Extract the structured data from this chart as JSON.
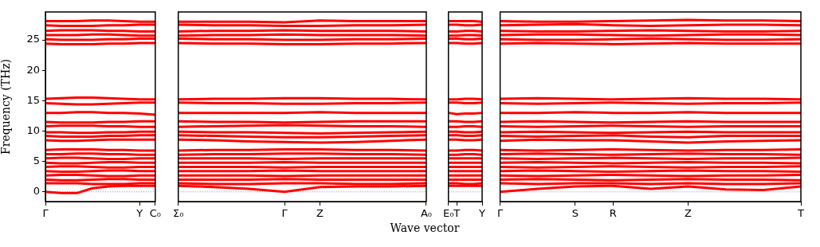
{
  "chart_data": [
    {
      "type": "line",
      "ylabel": "Frequency (THz)",
      "categories": [
        "Γ",
        null,
        null,
        null,
        null,
        null,
        "Y",
        "C₀"
      ],
      "ylim": [
        -1.6,
        29.6
      ],
      "yticks": [
        0,
        5,
        10,
        15,
        20,
        25
      ],
      "grid": false,
      "legend": false,
      "marker": "none",
      "line_style": "solid",
      "ref_lines": [
        {
          "axis": "y",
          "value": 0,
          "color": "#8080ff",
          "line_style": "dotted"
        }
      ],
      "series": [
        {
          "color": "#ff0000",
          "values": [
            28.1,
            28.1,
            28.1,
            28.2,
            28.2,
            28.1,
            28.0,
            28.0
          ]
        },
        {
          "color": "#ff0000",
          "values": [
            27.4,
            27.3,
            27.3,
            27.3,
            27.4,
            27.4,
            27.5,
            27.5
          ]
        },
        {
          "color": "#ff0000",
          "values": [
            26.5,
            26.6,
            26.6,
            26.6,
            26.5,
            26.5,
            26.4,
            26.4
          ]
        },
        {
          "color": "#ff0000",
          "values": [
            25.8,
            25.8,
            25.8,
            25.9,
            25.9,
            25.8,
            25.7,
            25.7
          ]
        },
        {
          "color": "#ff0000",
          "values": [
            25.1,
            25.0,
            25.0,
            25.0,
            25.1,
            25.1,
            25.2,
            25.2
          ]
        },
        {
          "color": "#ff0000",
          "values": [
            24.4,
            24.3,
            24.3,
            24.3,
            24.4,
            24.4,
            24.5,
            24.5
          ]
        },
        {
          "color": "#ff0000",
          "values": [
            15.3,
            15.4,
            15.5,
            15.5,
            15.4,
            15.3,
            15.2,
            15.2
          ]
        },
        {
          "color": "#ff0000",
          "values": [
            14.6,
            14.5,
            14.4,
            14.4,
            14.5,
            14.6,
            14.7,
            14.7
          ]
        },
        {
          "color": "#ff0000",
          "values": [
            13.0,
            13.0,
            13.1,
            13.1,
            13.0,
            13.0,
            12.9,
            12.7
          ]
        },
        {
          "color": "#ff0000",
          "values": [
            11.5,
            11.4,
            11.4,
            11.4,
            11.5,
            11.5,
            11.6,
            11.6
          ]
        },
        {
          "color": "#ff0000",
          "values": [
            10.8,
            10.9,
            10.9,
            10.9,
            10.8,
            10.8,
            10.7,
            10.7
          ]
        },
        {
          "color": "#ff0000",
          "values": [
            9.8,
            9.8,
            9.7,
            9.7,
            9.8,
            9.8,
            9.9,
            9.9
          ]
        },
        {
          "color": "#ff0000",
          "values": [
            9.2,
            9.1,
            9.1,
            9.1,
            9.2,
            9.2,
            9.3,
            9.3
          ]
        },
        {
          "color": "#ff0000",
          "values": [
            8.5,
            8.4,
            8.4,
            8.5,
            8.6,
            8.6,
            8.6,
            8.6
          ]
        },
        {
          "color": "#ff0000",
          "values": [
            6.9,
            7.0,
            7.0,
            7.0,
            6.9,
            6.9,
            6.8,
            6.8
          ]
        },
        {
          "color": "#ff0000",
          "values": [
            6.2,
            6.2,
            6.3,
            6.3,
            6.2,
            6.2,
            6.1,
            6.1
          ]
        },
        {
          "color": "#ff0000",
          "values": [
            5.5,
            5.6,
            5.6,
            5.5,
            5.4,
            5.4,
            5.5,
            5.5
          ]
        },
        {
          "color": "#ff0000",
          "values": [
            4.8,
            4.7,
            4.7,
            4.8,
            4.9,
            4.9,
            4.8,
            4.8
          ]
        },
        {
          "color": "#ff0000",
          "values": [
            4.1,
            4.2,
            4.2,
            4.1,
            4.0,
            4.0,
            4.1,
            4.1
          ]
        },
        {
          "color": "#ff0000",
          "values": [
            3.4,
            3.3,
            3.3,
            3.4,
            3.5,
            3.5,
            3.4,
            3.4
          ]
        },
        {
          "color": "#ff0000",
          "values": [
            2.7,
            2.8,
            2.8,
            2.7,
            2.6,
            2.6,
            2.7,
            2.7
          ]
        },
        {
          "color": "#ff0000",
          "values": [
            2.0,
            1.9,
            1.9,
            2.0,
            2.1,
            2.1,
            2.0,
            2.0
          ]
        },
        {
          "color": "#ff0000",
          "values": [
            1.4,
            1.4,
            1.4,
            1.3,
            1.3,
            1.3,
            1.4,
            1.4
          ]
        },
        {
          "color": "#ff0000",
          "values": [
            0,
            -0.2,
            -0.2,
            0.6,
            0.9,
            1.0,
            1.0,
            1.0
          ]
        }
      ]
    },
    {
      "type": "line",
      "xlabel": "Wave vector",
      "categories": [
        "Σ₀",
        null,
        null,
        "Γ",
        "Z",
        null,
        null,
        "A₀"
      ],
      "ylim": [
        -1.6,
        29.6
      ],
      "yticks": [
        0,
        5,
        10,
        15,
        20,
        25
      ],
      "tick_labels": "x",
      "grid": false,
      "legend": false,
      "marker": "none",
      "line_style": "solid",
      "ref_lines": [
        {
          "axis": "y",
          "value": 0,
          "color": "#8080ff",
          "line_style": "dotted"
        }
      ],
      "series": [
        {
          "color": "#ff0000",
          "values": [
            28.0,
            28.0,
            28.0,
            27.9,
            28.2,
            28.1,
            28.1,
            28.1
          ]
        },
        {
          "color": "#ff0000",
          "values": [
            27.5,
            27.4,
            27.4,
            27.3,
            27.3,
            27.4,
            27.4,
            27.5
          ]
        },
        {
          "color": "#ff0000",
          "values": [
            26.4,
            26.5,
            26.5,
            26.6,
            26.5,
            26.5,
            26.5,
            26.4
          ]
        },
        {
          "color": "#ff0000",
          "values": [
            25.7,
            25.8,
            25.8,
            25.9,
            25.8,
            25.8,
            25.8,
            25.7
          ]
        },
        {
          "color": "#ff0000",
          "values": [
            25.2,
            25.1,
            25.1,
            25.0,
            25.0,
            25.1,
            25.1,
            25.2
          ]
        },
        {
          "color": "#ff0000",
          "values": [
            24.5,
            24.4,
            24.4,
            24.3,
            24.3,
            24.4,
            24.4,
            24.5
          ]
        },
        {
          "color": "#ff0000",
          "values": [
            15.2,
            15.3,
            15.3,
            15.4,
            15.4,
            15.3,
            15.3,
            15.2
          ]
        },
        {
          "color": "#ff0000",
          "values": [
            14.7,
            14.6,
            14.6,
            14.5,
            14.5,
            14.6,
            14.6,
            14.7
          ]
        },
        {
          "color": "#ff0000",
          "values": [
            13.0,
            13.0,
            13.0,
            13.0,
            13.1,
            13.0,
            13.0,
            13.0
          ]
        },
        {
          "color": "#ff0000",
          "values": [
            11.6,
            11.5,
            11.5,
            11.4,
            11.5,
            11.6,
            11.6,
            11.6
          ]
        },
        {
          "color": "#ff0000",
          "values": [
            10.7,
            10.8,
            10.9,
            11.0,
            10.9,
            10.8,
            10.8,
            10.7
          ]
        },
        {
          "color": "#ff0000",
          "values": [
            9.9,
            9.8,
            9.8,
            9.7,
            9.6,
            9.7,
            9.8,
            9.9
          ]
        },
        {
          "color": "#ff0000",
          "values": [
            9.3,
            9.2,
            9.1,
            9.0,
            9.0,
            9.1,
            9.2,
            9.3
          ]
        },
        {
          "color": "#ff0000",
          "values": [
            8.6,
            8.5,
            8.3,
            8.2,
            8.1,
            8.2,
            8.4,
            8.6
          ]
        },
        {
          "color": "#ff0000",
          "values": [
            6.8,
            6.9,
            6.9,
            7.0,
            7.0,
            6.9,
            6.9,
            6.8
          ]
        },
        {
          "color": "#ff0000",
          "values": [
            6.1,
            6.2,
            6.2,
            6.3,
            6.3,
            6.2,
            6.2,
            6.1
          ]
        },
        {
          "color": "#ff0000",
          "values": [
            5.5,
            5.5,
            5.5,
            5.4,
            5.5,
            5.5,
            5.5,
            5.5
          ]
        },
        {
          "color": "#ff0000",
          "values": [
            4.8,
            4.8,
            4.8,
            4.9,
            4.8,
            4.8,
            4.8,
            4.8
          ]
        },
        {
          "color": "#ff0000",
          "values": [
            4.1,
            4.1,
            4.1,
            4.0,
            4.1,
            4.1,
            4.1,
            4.1
          ]
        },
        {
          "color": "#ff0000",
          "values": [
            3.4,
            3.4,
            3.4,
            3.5,
            3.4,
            3.4,
            3.4,
            3.4
          ]
        },
        {
          "color": "#ff0000",
          "values": [
            2.7,
            2.7,
            2.7,
            2.6,
            2.7,
            2.7,
            2.7,
            2.7
          ]
        },
        {
          "color": "#ff0000",
          "values": [
            2.0,
            2.0,
            2.0,
            2.1,
            2.0,
            2.0,
            2.0,
            2.0
          ]
        },
        {
          "color": "#ff0000",
          "values": [
            1.4,
            1.3,
            1.3,
            1.4,
            1.4,
            1.3,
            1.3,
            1.4
          ]
        },
        {
          "color": "#ff0000",
          "values": [
            1.0,
            0.8,
            0.5,
            0,
            0.8,
            0.9,
            0.9,
            1.0
          ]
        }
      ]
    },
    {
      "type": "line",
      "categories": [
        "E₀",
        "T",
        null,
        null,
        "Y"
      ],
      "ylim": [
        -1.6,
        29.6
      ],
      "yticks": [
        0,
        5,
        10,
        15,
        20,
        25
      ],
      "tick_labels": "x",
      "grid": false,
      "legend": false,
      "marker": "none",
      "line_style": "solid",
      "ref_lines": [
        {
          "axis": "y",
          "value": 0,
          "color": "#8080ff",
          "line_style": "dotted"
        }
      ],
      "series": [
        {
          "color": "#ff0000",
          "values": [
            28.1,
            28.1,
            28.1,
            28.1,
            28.0
          ]
        },
        {
          "color": "#ff0000",
          "values": [
            27.5,
            27.5,
            27.4,
            27.4,
            27.5
          ]
        },
        {
          "color": "#ff0000",
          "values": [
            26.4,
            26.4,
            26.5,
            26.5,
            26.4
          ]
        },
        {
          "color": "#ff0000",
          "values": [
            25.7,
            25.7,
            25.8,
            25.8,
            25.7
          ]
        },
        {
          "color": "#ff0000",
          "values": [
            25.2,
            25.2,
            25.1,
            25.1,
            25.2
          ]
        },
        {
          "color": "#ff0000",
          "values": [
            24.5,
            24.5,
            24.4,
            24.4,
            24.5
          ]
        },
        {
          "color": "#ff0000",
          "values": [
            15.2,
            15.2,
            15.3,
            15.3,
            15.2
          ]
        },
        {
          "color": "#ff0000",
          "values": [
            14.7,
            14.7,
            14.6,
            14.6,
            14.7
          ]
        },
        {
          "color": "#ff0000",
          "values": [
            13.0,
            12.8,
            12.9,
            12.9,
            13.0
          ]
        },
        {
          "color": "#ff0000",
          "values": [
            11.6,
            11.6,
            11.5,
            11.5,
            11.6
          ]
        },
        {
          "color": "#ff0000",
          "values": [
            10.7,
            10.7,
            10.8,
            10.8,
            10.7
          ]
        },
        {
          "color": "#ff0000",
          "values": [
            9.9,
            9.9,
            9.8,
            9.8,
            9.9
          ]
        },
        {
          "color": "#ff0000",
          "values": [
            9.3,
            9.3,
            9.2,
            9.2,
            9.3
          ]
        },
        {
          "color": "#ff0000",
          "values": [
            8.6,
            8.6,
            8.5,
            8.5,
            8.6
          ]
        },
        {
          "color": "#ff0000",
          "values": [
            6.8,
            6.8,
            6.9,
            6.9,
            6.8
          ]
        },
        {
          "color": "#ff0000",
          "values": [
            6.1,
            6.1,
            6.2,
            6.2,
            6.1
          ]
        },
        {
          "color": "#ff0000",
          "values": [
            5.5,
            5.5,
            5.5,
            5.5,
            5.5
          ]
        },
        {
          "color": "#ff0000",
          "values": [
            4.8,
            4.8,
            4.8,
            4.8,
            4.8
          ]
        },
        {
          "color": "#ff0000",
          "values": [
            4.1,
            4.1,
            4.1,
            4.1,
            4.1
          ]
        },
        {
          "color": "#ff0000",
          "values": [
            3.4,
            3.4,
            3.4,
            3.4,
            3.4
          ]
        },
        {
          "color": "#ff0000",
          "values": [
            2.7,
            2.7,
            2.7,
            2.7,
            2.7
          ]
        },
        {
          "color": "#ff0000",
          "values": [
            2.0,
            2.0,
            2.0,
            2.0,
            2.0
          ]
        },
        {
          "color": "#ff0000",
          "values": [
            1.4,
            1.4,
            1.3,
            1.3,
            1.4
          ]
        },
        {
          "color": "#ff0000",
          "values": [
            1.0,
            1.0,
            1.0,
            1.0,
            1.0
          ]
        }
      ]
    },
    {
      "type": "line",
      "categories": [
        "Γ",
        null,
        "S",
        "R",
        null,
        "Z",
        null,
        null,
        "T"
      ],
      "ylim": [
        -1.6,
        29.6
      ],
      "yticks": [
        0,
        5,
        10,
        15,
        20,
        25
      ],
      "tick_labels": "x",
      "grid": false,
      "legend": false,
      "marker": "none",
      "line_style": "solid",
      "ref_lines": [
        {
          "axis": "y",
          "value": 0,
          "color": "#8080ff",
          "line_style": "dotted"
        }
      ],
      "series": [
        {
          "color": "#ff0000",
          "values": [
            28.1,
            28.0,
            28.0,
            28.1,
            28.2,
            28.3,
            28.2,
            28.2,
            28.1
          ]
        },
        {
          "color": "#ff0000",
          "values": [
            27.4,
            27.5,
            27.6,
            27.4,
            27.3,
            27.4,
            27.5,
            27.5,
            27.4
          ]
        },
        {
          "color": "#ff0000",
          "values": [
            26.5,
            26.4,
            26.4,
            26.5,
            26.6,
            26.5,
            26.4,
            26.4,
            26.5
          ]
        },
        {
          "color": "#ff0000",
          "values": [
            25.8,
            25.9,
            25.9,
            25.8,
            25.7,
            25.8,
            25.9,
            25.9,
            25.8
          ]
        },
        {
          "color": "#ff0000",
          "values": [
            25.1,
            25.0,
            25.0,
            25.1,
            25.2,
            25.1,
            25.0,
            25.0,
            25.1
          ]
        },
        {
          "color": "#ff0000",
          "values": [
            24.4,
            24.5,
            24.4,
            24.3,
            24.4,
            24.5,
            24.4,
            24.4,
            24.4
          ]
        },
        {
          "color": "#ff0000",
          "values": [
            15.3,
            15.4,
            15.3,
            15.2,
            15.3,
            15.4,
            15.3,
            15.3,
            15.2
          ]
        },
        {
          "color": "#ff0000",
          "values": [
            14.6,
            14.5,
            14.6,
            14.7,
            14.6,
            14.5,
            14.6,
            14.6,
            14.7
          ]
        },
        {
          "color": "#ff0000",
          "values": [
            13.0,
            13.0,
            13.1,
            13.0,
            13.0,
            13.1,
            13.0,
            13.0,
            13.0
          ]
        },
        {
          "color": "#ff0000",
          "values": [
            11.5,
            11.6,
            11.5,
            11.4,
            11.5,
            11.6,
            11.5,
            11.5,
            11.5
          ]
        },
        {
          "color": "#ff0000",
          "values": [
            10.8,
            10.7,
            10.8,
            10.9,
            10.8,
            10.7,
            10.8,
            10.8,
            10.8
          ]
        },
        {
          "color": "#ff0000",
          "values": [
            9.8,
            9.9,
            9.8,
            9.7,
            9.8,
            9.9,
            9.8,
            9.8,
            9.8
          ]
        },
        {
          "color": "#ff0000",
          "values": [
            9.2,
            9.1,
            9.2,
            9.3,
            9.1,
            9.0,
            9.2,
            9.2,
            9.2
          ]
        },
        {
          "color": "#ff0000",
          "values": [
            8.4,
            8.6,
            8.5,
            8.5,
            8.3,
            8.1,
            8.3,
            8.4,
            8.5
          ]
        },
        {
          "color": "#ff0000",
          "values": [
            6.9,
            6.8,
            6.9,
            7.0,
            6.9,
            6.8,
            6.9,
            6.9,
            7.0
          ]
        },
        {
          "color": "#ff0000",
          "values": [
            6.2,
            6.3,
            6.2,
            6.1,
            6.2,
            6.3,
            6.2,
            6.2,
            6.1
          ]
        },
        {
          "color": "#ff0000",
          "values": [
            5.5,
            5.4,
            5.5,
            5.6,
            5.5,
            5.4,
            5.5,
            5.5,
            5.6
          ]
        },
        {
          "color": "#ff0000",
          "values": [
            4.8,
            4.9,
            4.8,
            4.7,
            4.8,
            4.9,
            4.8,
            4.8,
            4.7
          ]
        },
        {
          "color": "#ff0000",
          "values": [
            4.1,
            4.0,
            4.1,
            4.2,
            4.1,
            4.0,
            4.1,
            4.1,
            4.2
          ]
        },
        {
          "color": "#ff0000",
          "values": [
            3.4,
            3.5,
            3.4,
            3.3,
            3.4,
            3.5,
            3.4,
            3.4,
            3.3
          ]
        },
        {
          "color": "#ff0000",
          "values": [
            2.7,
            2.6,
            2.7,
            2.8,
            2.7,
            2.6,
            2.7,
            2.7,
            2.8
          ]
        },
        {
          "color": "#ff0000",
          "values": [
            2.0,
            2.1,
            2.0,
            1.9,
            2.0,
            2.1,
            2.0,
            2.0,
            1.9
          ]
        },
        {
          "color": "#ff0000",
          "values": [
            1.4,
            1.3,
            1.4,
            1.4,
            1.3,
            1.4,
            1.3,
            1.3,
            1.4
          ]
        },
        {
          "color": "#ff0000",
          "values": [
            0,
            0.5,
            0.9,
            1.0,
            0.5,
            0.9,
            0.4,
            0.3,
            0.9
          ]
        }
      ]
    }
  ]
}
